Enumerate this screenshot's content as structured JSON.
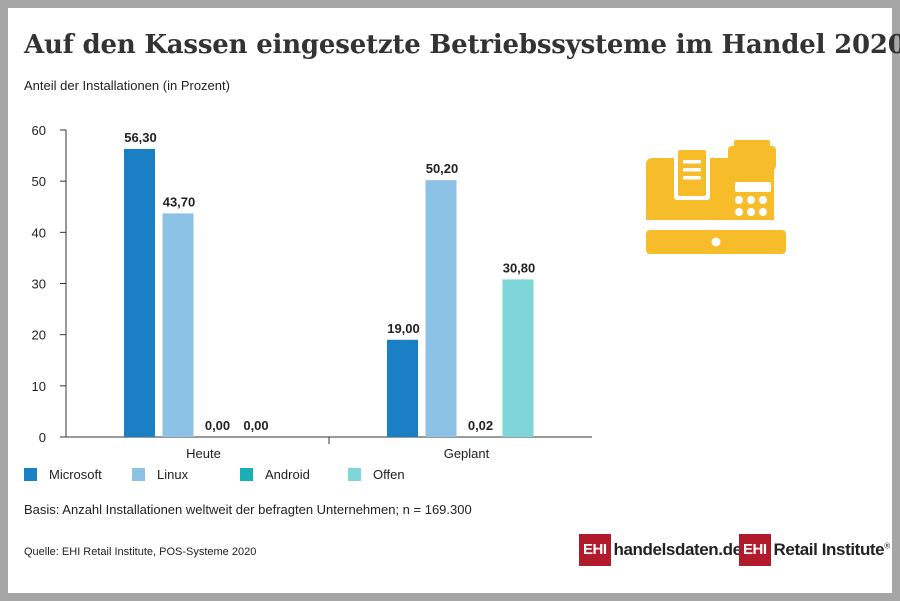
{
  "title": "Auf den Kassen eingesetzte Betriebssysteme im Handel 2020",
  "subtitle": "Anteil der Installationen (in Prozent)",
  "basis": "Basis: Anzahl Installationen weltweit der befragten Unternehmen; n = 169.300",
  "source": "Quelle: EHI Retail Institute, POS-Systeme 2020",
  "logos": {
    "badge": "EHI",
    "handelsdaten": "handelsdaten.de",
    "retail": "Retail Institute",
    "reg": "®"
  },
  "icon": "cash-register-icon",
  "colors": {
    "microsoft": "#1a7fc4",
    "linux": "#8cc2e5",
    "android": "#1aaeb5",
    "offen": "#7fd6d8",
    "icon": "#f7bc2a",
    "logo": "#b11a2b"
  },
  "chart_data": {
    "type": "bar",
    "categories": [
      "Heute",
      "Geplant"
    ],
    "series": [
      {
        "name": "Microsoft",
        "values": [
          56.3,
          19.0
        ],
        "labels": [
          "56,30",
          "19,00"
        ]
      },
      {
        "name": "Linux",
        "values": [
          43.7,
          50.2
        ],
        "labels": [
          "43,70",
          "50,20"
        ]
      },
      {
        "name": "Android",
        "values": [
          0.0,
          0.02
        ],
        "labels": [
          "0,00",
          "0,02"
        ]
      },
      {
        "name": "Offen",
        "values": [
          0.0,
          30.8
        ],
        "labels": [
          "0,00",
          "30,80"
        ]
      }
    ],
    "ylim": [
      0,
      60
    ],
    "yticks": [
      0,
      10,
      20,
      30,
      40,
      50,
      60
    ],
    "grid": false,
    "legend": "bottom"
  }
}
